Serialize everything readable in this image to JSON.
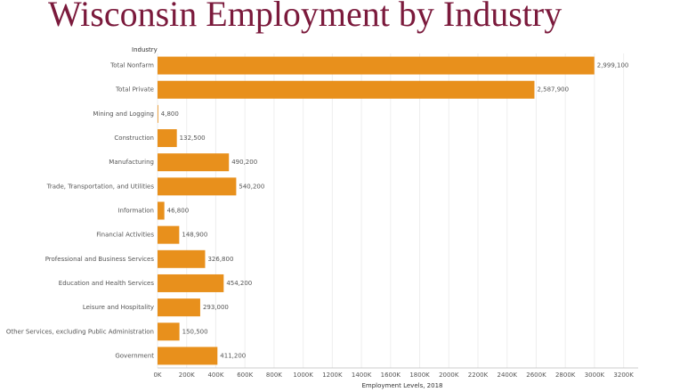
{
  "chart_data": {
    "type": "bar",
    "orientation": "horizontal",
    "title": "Wisconsin Employment by Industry",
    "y_label": "Industry",
    "x_label": "Employment Levels, 2018",
    "categories": [
      "Total Nonfarm",
      "Total Private",
      "Mining and Logging",
      "Construction",
      "Manufacturing",
      "Trade, Transportation, and Utilities",
      "Information",
      "Financial Activities",
      "Professional and Business Services",
      "Education and Health Services",
      "Leisure and Hospitality",
      "Other Services, excluding Public Administration",
      "Government"
    ],
    "values": [
      2999100,
      2587900,
      4800,
      132500,
      490200,
      540200,
      46800,
      148900,
      326800,
      454200,
      293000,
      150500,
      411200
    ],
    "value_labels": [
      "2,999,100",
      "2,587,900",
      "4,800",
      "132,500",
      "490,200",
      "540,200",
      "46,800",
      "148,900",
      "326,800",
      "454,200",
      "293,000",
      "150,500",
      "411,200"
    ],
    "color": "#e8901c",
    "xlim": [
      0,
      3300000
    ],
    "xticks": [
      {
        "value": 0,
        "label": "0K"
      },
      {
        "value": 200000,
        "label": "200K"
      },
      {
        "value": 400000,
        "label": "400K"
      },
      {
        "value": 600000,
        "label": "600K"
      },
      {
        "value": 800000,
        "label": "800K"
      },
      {
        "value": 1000000,
        "label": "1000K"
      },
      {
        "value": 1200000,
        "label": "1200K"
      },
      {
        "value": 1400000,
        "label": "1400K"
      },
      {
        "value": 1600000,
        "label": "1600K"
      },
      {
        "value": 1800000,
        "label": "1800K"
      },
      {
        "value": 2000000,
        "label": "2000K"
      },
      {
        "value": 2200000,
        "label": "2200K"
      },
      {
        "value": 2400000,
        "label": "2400K"
      },
      {
        "value": 2600000,
        "label": "2600K"
      },
      {
        "value": 2800000,
        "label": "2800K"
      },
      {
        "value": 3000000,
        "label": "3000K"
      },
      {
        "value": 3200000,
        "label": "3200K"
      }
    ],
    "grid": true
  }
}
